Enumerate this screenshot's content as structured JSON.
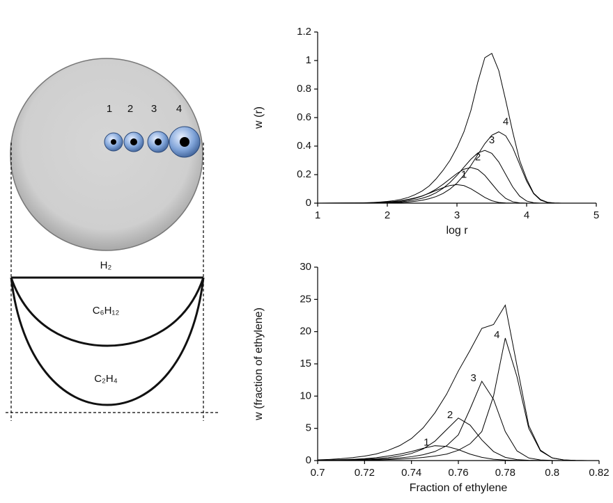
{
  "diagram": {
    "pore_labels": [
      "1",
      "2",
      "3",
      "4"
    ],
    "layer_labels": [
      "H₂",
      "C₆H₁₂",
      "C₂H₄"
    ]
  },
  "chart_data": [
    {
      "type": "line",
      "x_label": "log r",
      "y_label": "w (r)",
      "color": "#000000",
      "xlim": [
        1,
        5
      ],
      "ylim": [
        0,
        1.2
      ],
      "xticks": [
        1,
        2,
        3,
        4,
        5
      ],
      "yticks": [
        0,
        0.2,
        0.4,
        0.6,
        0.8,
        1,
        1.2
      ],
      "x": [
        1,
        1.5,
        1.6,
        1.7,
        1.8,
        1.9,
        2,
        2.1,
        2.2,
        2.3,
        2.4,
        2.5,
        2.6,
        2.7,
        2.8,
        2.9,
        3,
        3.1,
        3.2,
        3.3,
        3.4,
        3.5,
        3.6,
        3.7,
        3.8,
        3.9,
        4,
        4.1,
        4.2,
        4.3,
        4.4,
        4.5,
        5
      ],
      "series": [
        {
          "values": [
            0,
            0.001,
            0.002,
            0.003,
            0.005,
            0.008,
            0.012,
            0.018,
            0.027,
            0.04,
            0.06,
            0.085,
            0.12,
            0.17,
            0.23,
            0.3,
            0.39,
            0.5,
            0.65,
            0.85,
            1.02,
            1.05,
            0.93,
            0.72,
            0.5,
            0.3,
            0.17,
            0.07,
            0.025,
            0.006,
            0.001,
            0,
            0
          ]
        },
        {
          "name": "1",
          "values": [
            0,
            0.001,
            0.001,
            0.002,
            0.003,
            0.005,
            0.008,
            0.012,
            0.018,
            0.026,
            0.037,
            0.051,
            0.069,
            0.089,
            0.108,
            0.124,
            0.13,
            0.123,
            0.101,
            0.071,
            0.04,
            0.017,
            0.005,
            0.001,
            0,
            0,
            0,
            0,
            0,
            0,
            0,
            0,
            0
          ]
        },
        {
          "name": "2",
          "values": [
            0,
            0.001,
            0.001,
            0.002,
            0.003,
            0.004,
            0.007,
            0.01,
            0.015,
            0.023,
            0.034,
            0.049,
            0.071,
            0.098,
            0.132,
            0.17,
            0.208,
            0.238,
            0.25,
            0.236,
            0.195,
            0.136,
            0.077,
            0.033,
            0.01,
            0.002,
            0,
            0,
            0,
            0,
            0,
            0,
            0
          ]
        },
        {
          "name": "3",
          "values": [
            0,
            0,
            0.001,
            0.001,
            0.002,
            0.003,
            0.004,
            0.006,
            0.01,
            0.015,
            0.023,
            0.034,
            0.05,
            0.073,
            0.104,
            0.145,
            0.195,
            0.252,
            0.308,
            0.352,
            0.37,
            0.349,
            0.289,
            0.201,
            0.114,
            0.049,
            0.015,
            0.003,
            0,
            0,
            0,
            0,
            0
          ]
        },
        {
          "name": "4",
          "values": [
            0,
            0,
            0,
            0.001,
            0.001,
            0.001,
            0.002,
            0.004,
            0.005,
            0.008,
            0.013,
            0.02,
            0.031,
            0.046,
            0.068,
            0.099,
            0.141,
            0.197,
            0.264,
            0.341,
            0.417,
            0.476,
            0.5,
            0.472,
            0.39,
            0.272,
            0.154,
            0.067,
            0.021,
            0.004,
            0.001,
            0,
            0
          ]
        }
      ]
    },
    {
      "type": "line",
      "x_label": "Fraction of ethylene",
      "y_label": "w (fraction of ethylene)",
      "color": "#000000",
      "xlim": [
        0.7,
        0.82
      ],
      "ylim": [
        0,
        30
      ],
      "xticks": [
        0.7,
        0.72,
        0.74,
        0.76,
        0.78,
        0.8,
        0.82
      ],
      "yticks": [
        0,
        5,
        10,
        15,
        20,
        25,
        30
      ],
      "x": [
        0.7,
        0.705,
        0.71,
        0.715,
        0.72,
        0.725,
        0.73,
        0.735,
        0.74,
        0.745,
        0.75,
        0.755,
        0.76,
        0.765,
        0.77,
        0.775,
        0.78,
        0.785,
        0.79,
        0.795,
        0.8,
        0.805,
        0.81,
        0.815,
        0.82
      ],
      "series": [
        {
          "values": [
            0.11,
            0.18,
            0.29,
            0.46,
            0.69,
            1.03,
            1.57,
            2.32,
            3.42,
            5.08,
            7.4,
            10.3,
            13.9,
            17.1,
            20.5,
            21.1,
            24.1,
            14.7,
            5.45,
            1.61,
            0.42,
            0.1,
            0.02,
            0,
            0
          ]
        },
        {
          "name": "1",
          "values": [
            0.05,
            0.08,
            0.13,
            0.2,
            0.3,
            0.45,
            0.7,
            1,
            1.4,
            1.9,
            2.3,
            2.2,
            1.7,
            1,
            0.5,
            0.2,
            0.08,
            0.03,
            0.01,
            0,
            0,
            0,
            0,
            0,
            0
          ]
        },
        {
          "name": "2",
          "values": [
            0.03,
            0.05,
            0.08,
            0.13,
            0.2,
            0.3,
            0.45,
            0.7,
            1.1,
            1.8,
            3,
            4.8,
            6.6,
            5.5,
            3.2,
            1.4,
            0.5,
            0.15,
            0.04,
            0.01,
            0,
            0,
            0,
            0,
            0
          ]
        },
        {
          "name": "3",
          "values": [
            0.02,
            0.03,
            0.05,
            0.08,
            0.12,
            0.18,
            0.27,
            0.4,
            0.6,
            0.9,
            1.4,
            2.3,
            4,
            8,
            12.3,
            9.5,
            4.5,
            1.5,
            0.4,
            0.1,
            0.02,
            0,
            0,
            0,
            0
          ]
        },
        {
          "name": "4",
          "values": [
            0.01,
            0.02,
            0.03,
            0.05,
            0.07,
            0.1,
            0.15,
            0.22,
            0.32,
            0.48,
            0.7,
            1,
            1.6,
            2.6,
            4.5,
            10,
            19,
            13,
            5,
            1.5,
            0.4,
            0.1,
            0.02,
            0,
            0
          ]
        }
      ]
    }
  ]
}
